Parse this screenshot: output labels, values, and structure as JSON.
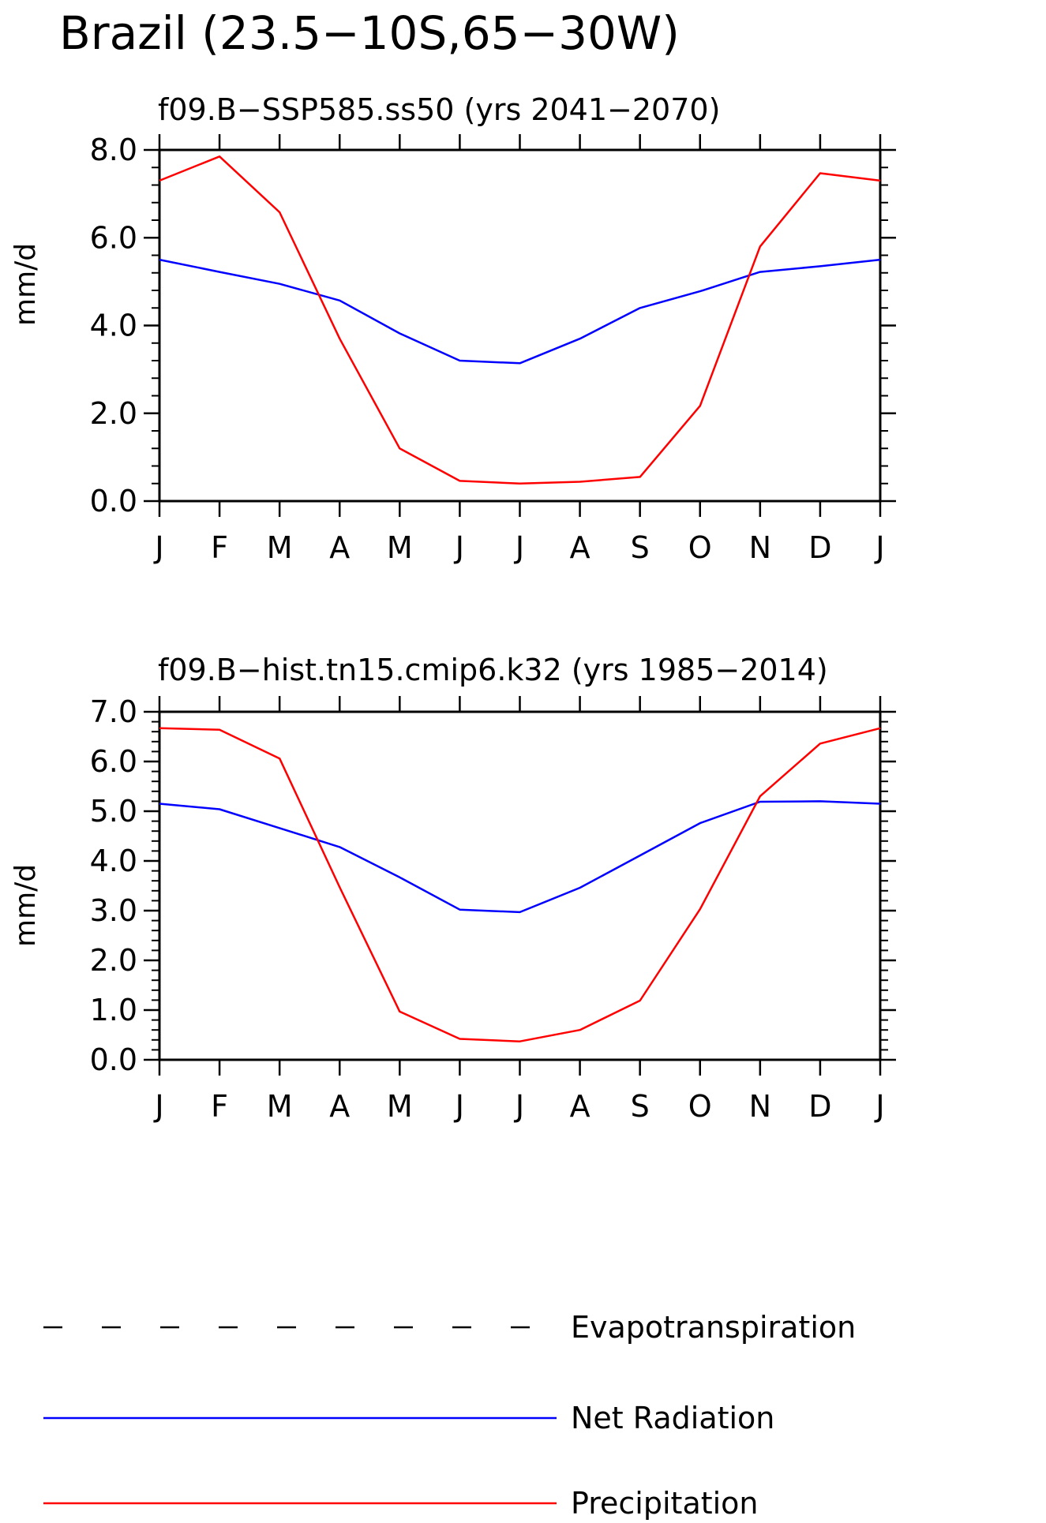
{
  "figure": {
    "title": "Brazil (23.5−10S,65−30W)"
  },
  "legend": {
    "placement": "bottom",
    "entries": [
      {
        "label": "Evapotranspiration",
        "color": "#000000",
        "dashed": true
      },
      {
        "label": "Net Radiation",
        "color": "#0000ff",
        "dashed": false
      },
      {
        "label": "Precipitation",
        "color": "#ff0000",
        "dashed": false
      }
    ]
  },
  "chart_data": [
    {
      "type": "line",
      "title": "f09.B−SSP585.ss50 (yrs 2041−2070)",
      "xlabel": "",
      "ylabel": "mm/d",
      "categories": [
        "J",
        "F",
        "M",
        "A",
        "M",
        "J",
        "J",
        "A",
        "S",
        "O",
        "N",
        "D",
        "J"
      ],
      "ylim": [
        0,
        8
      ],
      "yticks": [
        "0.0",
        "2.0",
        "4.0",
        "6.0",
        "8.0"
      ],
      "ytick_values": [
        0,
        2,
        4,
        6,
        8
      ],
      "grid": false,
      "series": [
        {
          "name": "Net Radiation",
          "color": "#0000ff",
          "values": [
            5.5,
            5.22,
            4.95,
            4.57,
            3.82,
            3.2,
            3.14,
            3.7,
            4.4,
            4.78,
            5.22,
            5.35,
            5.5
          ]
        },
        {
          "name": "Precipitation",
          "color": "#ff0000",
          "values": [
            7.3,
            7.85,
            6.58,
            3.7,
            1.2,
            0.46,
            0.4,
            0.44,
            0.55,
            2.17,
            5.8,
            7.47,
            7.3
          ]
        }
      ]
    },
    {
      "type": "line",
      "title": "f09.B−hist.tn15.cmip6.k32 (yrs 1985−2014)",
      "xlabel": "",
      "ylabel": "mm/d",
      "categories": [
        "J",
        "F",
        "M",
        "A",
        "M",
        "J",
        "J",
        "A",
        "S",
        "O",
        "N",
        "D",
        "J"
      ],
      "ylim": [
        0,
        7
      ],
      "yticks": [
        "0.0",
        "1.0",
        "2.0",
        "3.0",
        "4.0",
        "5.0",
        "6.0",
        "7.0"
      ],
      "ytick_values": [
        0,
        1,
        2,
        3,
        4,
        5,
        6,
        7
      ],
      "grid": false,
      "series": [
        {
          "name": "Net Radiation",
          "color": "#0000ff",
          "values": [
            5.15,
            5.04,
            4.66,
            4.28,
            3.67,
            3.02,
            2.97,
            3.46,
            4.11,
            4.76,
            5.19,
            5.2,
            5.15
          ]
        },
        {
          "name": "Precipitation",
          "color": "#ff0000",
          "values": [
            6.67,
            6.64,
            6.06,
            3.47,
            0.97,
            0.42,
            0.37,
            0.6,
            1.19,
            3.03,
            5.3,
            6.36,
            6.67
          ]
        }
      ]
    }
  ]
}
